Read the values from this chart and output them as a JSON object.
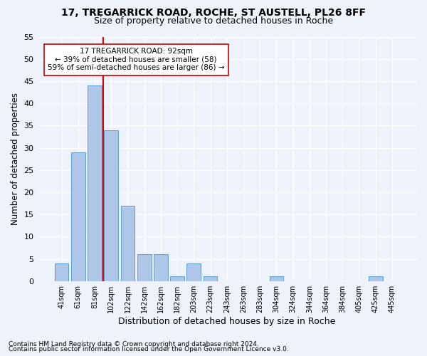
{
  "title1": "17, TREGARRICK ROAD, ROCHE, ST AUSTELL, PL26 8FF",
  "title2": "Size of property relative to detached houses in Roche",
  "xlabel": "Distribution of detached houses by size in Roche",
  "ylabel": "Number of detached properties",
  "bar_color": "#aec6e8",
  "bar_edge_color": "#5a9fd4",
  "categories": [
    "41sqm",
    "61sqm",
    "81sqm",
    "102sqm",
    "122sqm",
    "142sqm",
    "162sqm",
    "182sqm",
    "203sqm",
    "223sqm",
    "243sqm",
    "263sqm",
    "283sqm",
    "304sqm",
    "324sqm",
    "344sqm",
    "364sqm",
    "384sqm",
    "405sqm",
    "425sqm",
    "445sqm"
  ],
  "values": [
    4,
    29,
    44,
    34,
    17,
    6,
    6,
    1,
    4,
    1,
    0,
    0,
    0,
    1,
    0,
    0,
    0,
    0,
    0,
    1,
    0
  ],
  "ylim": [
    0,
    55
  ],
  "yticks": [
    0,
    5,
    10,
    15,
    20,
    25,
    30,
    35,
    40,
    45,
    50,
    55
  ],
  "vline_color": "#cc0000",
  "annotation_line1": "17 TREGARRICK ROAD: 92sqm",
  "annotation_line2": "← 39% of detached houses are smaller (58)",
  "annotation_line3": "59% of semi-detached houses are larger (86) →",
  "annotation_box_color": "#ffffff",
  "annotation_box_edge": "#cc0000",
  "footer1": "Contains HM Land Registry data © Crown copyright and database right 2024.",
  "footer2": "Contains public sector information licensed under the Open Government Licence v3.0.",
  "background_color": "#eef2fb",
  "grid_color": "#ffffff"
}
